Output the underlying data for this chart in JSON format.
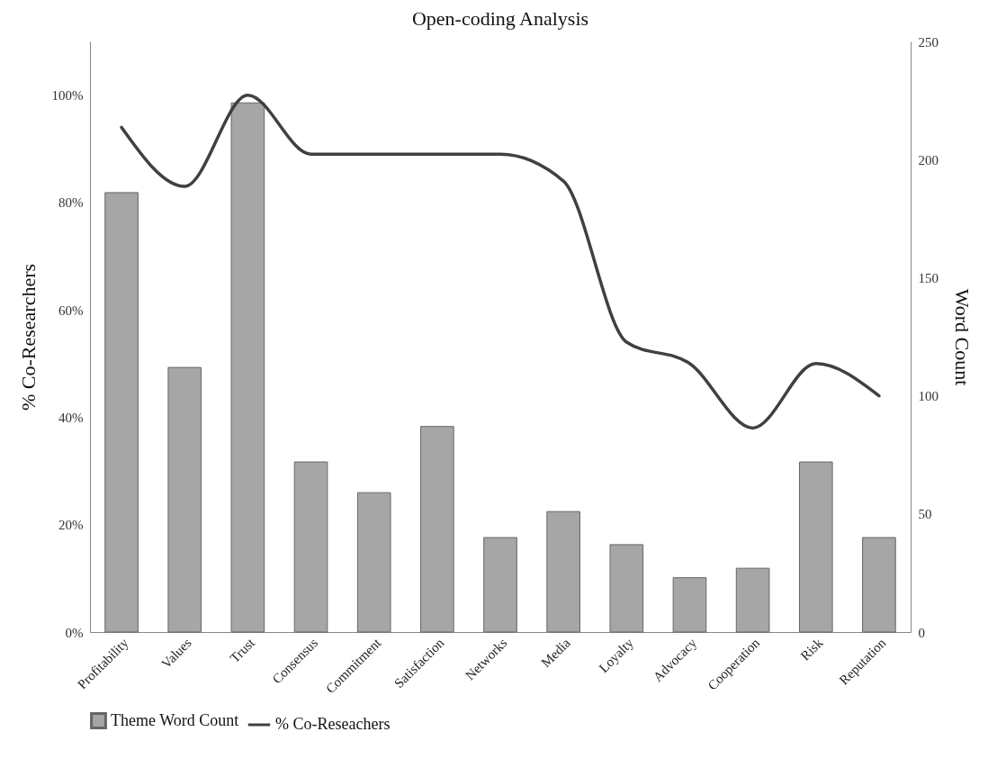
{
  "chart_data": {
    "type": "bar",
    "title": "Open-coding Analysis",
    "ylabel": "% Co-Researchers",
    "y2label": "Word Count",
    "categories": [
      "Profitability",
      "Values",
      "Trust",
      "Consensus",
      "Commitment",
      "Satisfaction",
      "Networks",
      "Media",
      "Loyalty",
      "Advocacy",
      "Cooperation",
      "Risk",
      "Reputation"
    ],
    "series": [
      {
        "name": "Theme Word Count",
        "axis": "y2",
        "color": "#a6a6a6",
        "values": [
          186,
          112,
          224,
          72,
          59,
          87,
          40,
          51,
          37,
          23,
          27,
          72,
          40
        ]
      },
      {
        "name": "% Co-Reseachers",
        "type": "line",
        "color": "#404040",
        "values": [
          94,
          83,
          100,
          89,
          89,
          89,
          89,
          84,
          54,
          50,
          38,
          50,
          44
        ]
      }
    ],
    "ylim": [
      0,
      110
    ],
    "yticks": [
      {
        "value": 0,
        "label": "0%"
      },
      {
        "value": 20,
        "label": "20%"
      },
      {
        "value": 40,
        "label": "40%"
      },
      {
        "value": 60,
        "label": "60%"
      },
      {
        "value": 80,
        "label": "80%"
      },
      {
        "value": 100,
        "label": "100%"
      }
    ],
    "y2lim": [
      0,
      250
    ],
    "y2ticks": [
      0,
      50,
      100,
      150,
      200,
      250
    ],
    "legend": "bottom",
    "marker": "none",
    "line_style": "solid"
  }
}
